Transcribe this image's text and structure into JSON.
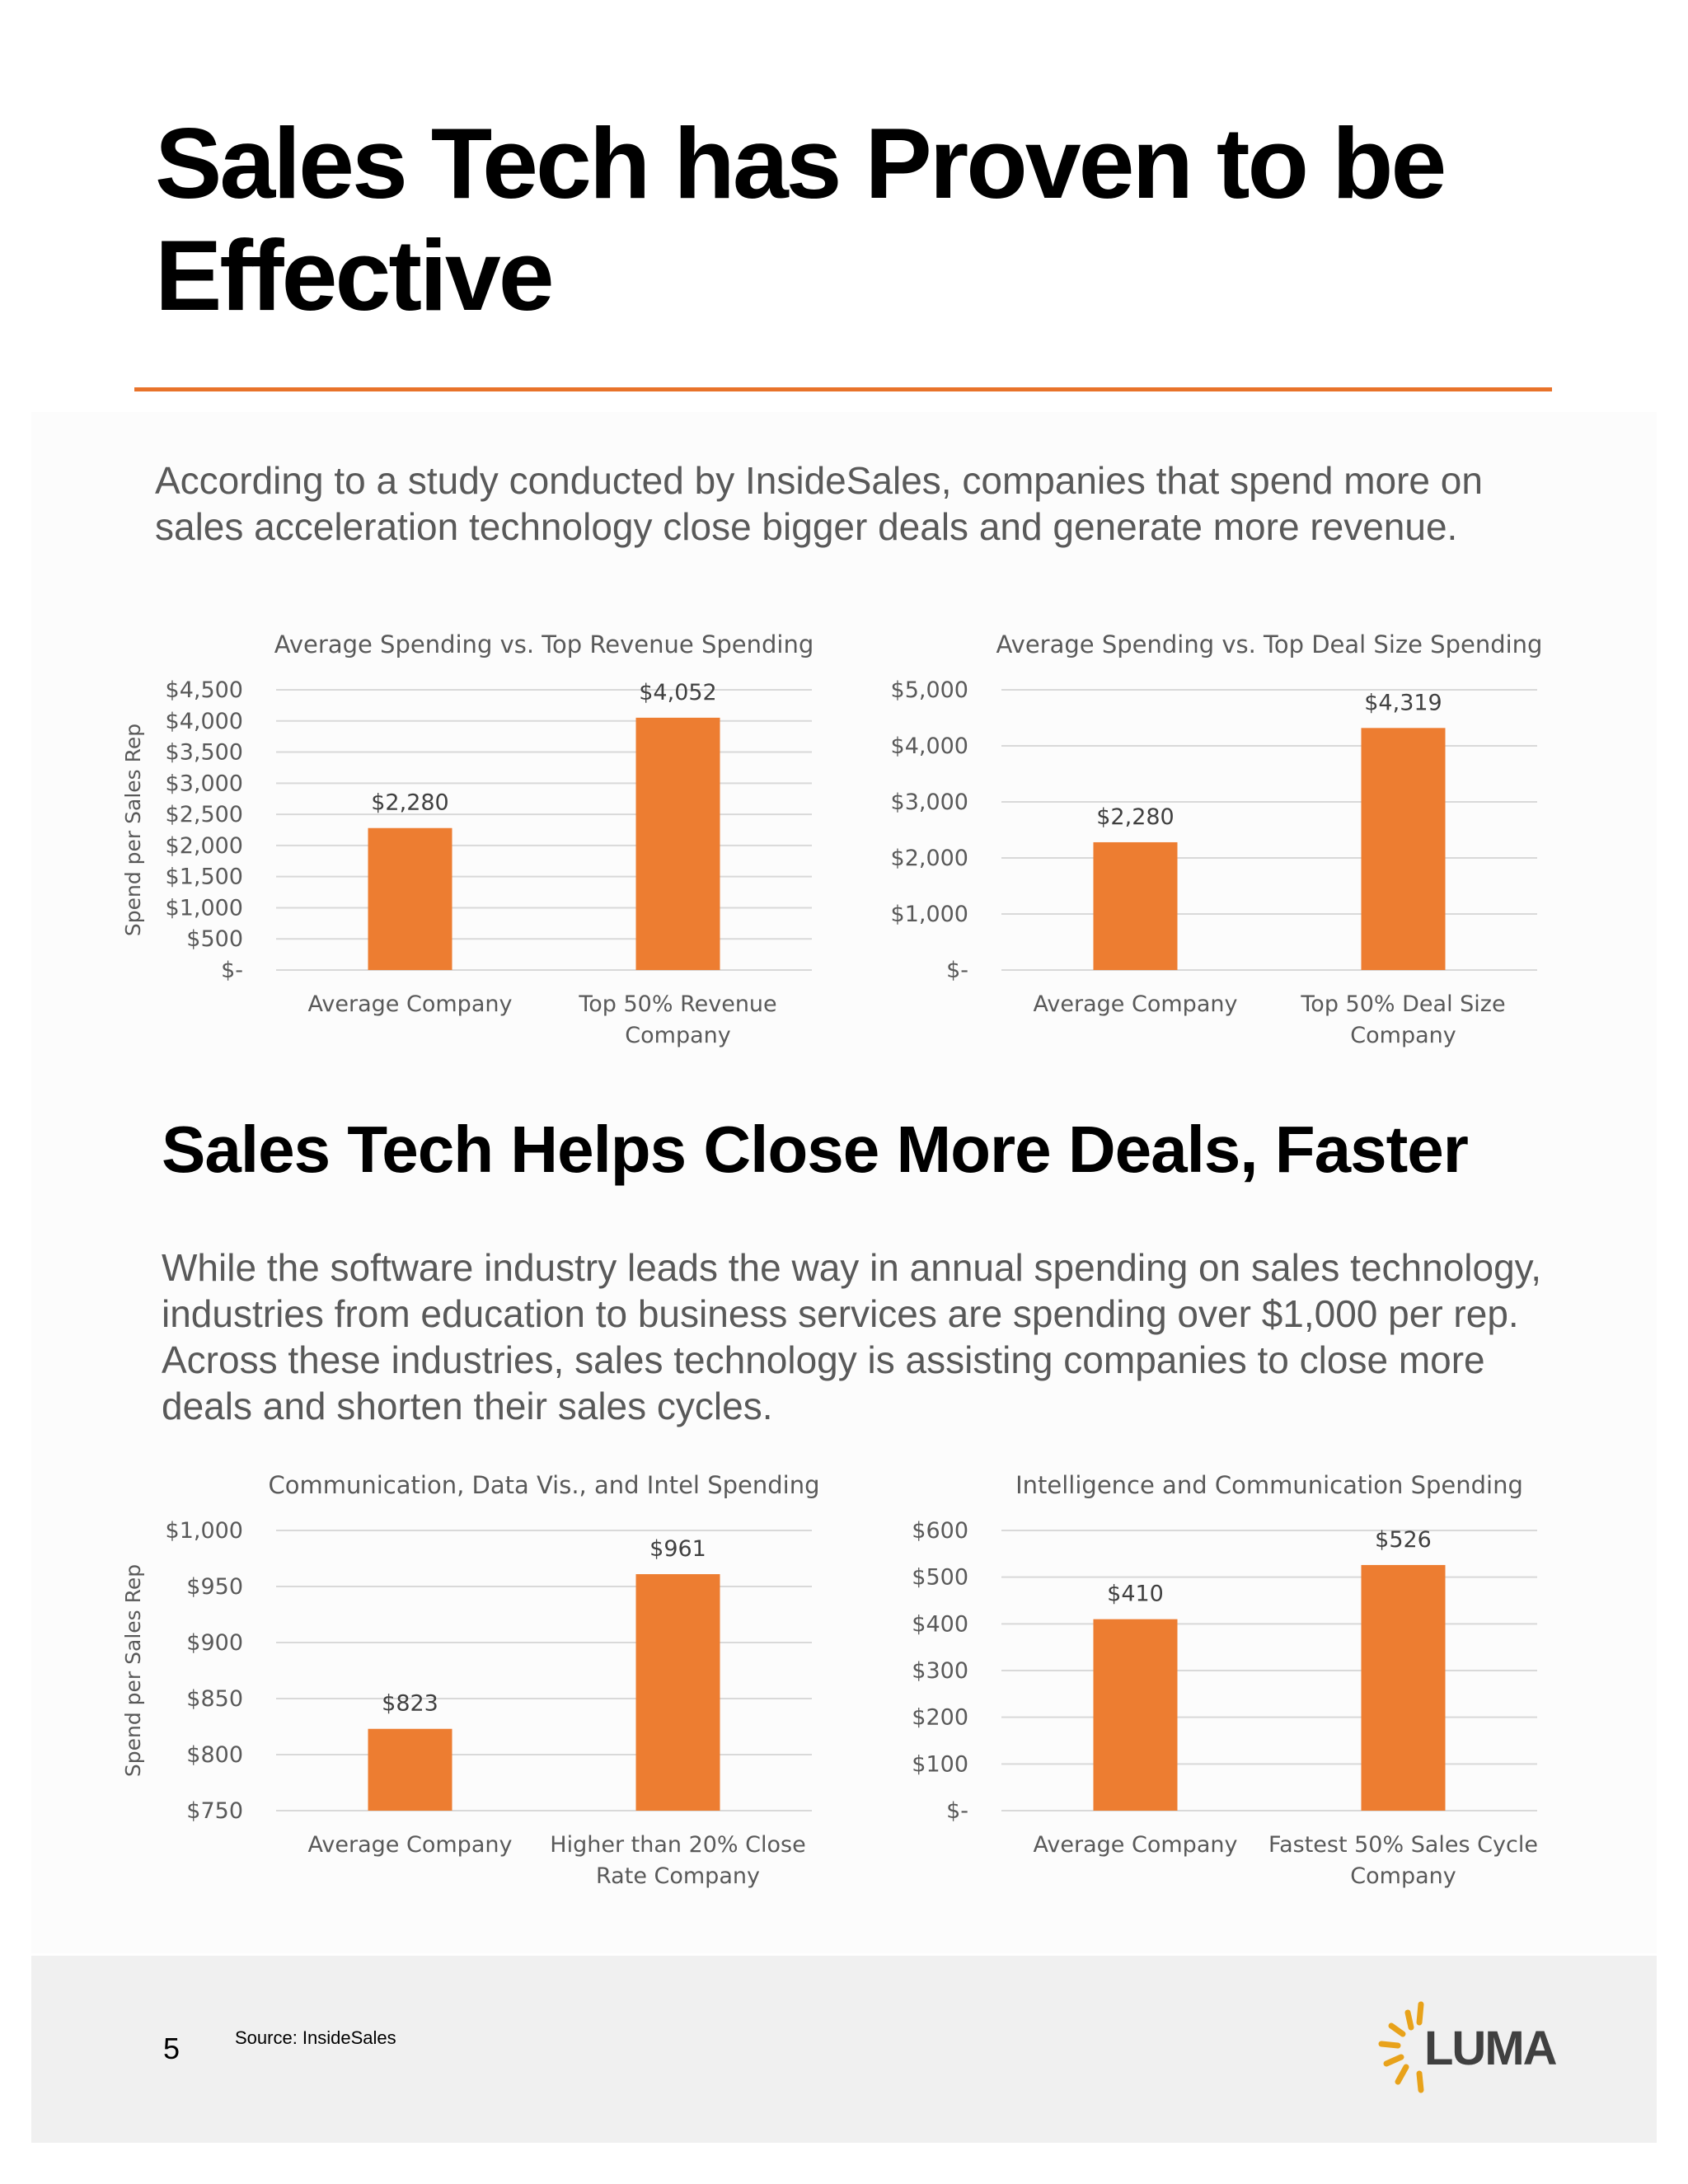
{
  "title": "Sales Tech has Proven to be Effective",
  "intro": "According to a study conducted by InsideSales, companies that spend more on sales acceleration technology close bigger deals and generate more revenue.",
  "subtitle": "Sales Tech Helps Close More Deals, Faster",
  "paragraph": "While the software industry leads the way in annual spending on sales technology, industries from education to business services are spending over $1,000 per rep. Across these industries, sales technology is assisting companies to close more deals and shorten their sales cycles.",
  "footer": {
    "page_number": "5",
    "source": "Source: InsideSales",
    "logo": "LUMA"
  },
  "colors": {
    "accent": "#e8732a",
    "bar": "#ed7d31",
    "grid": "#d9d9d9",
    "text": "#595959",
    "footer_bg": "#f0f0f0"
  },
  "chart_data": [
    {
      "type": "bar",
      "title": "Average Spending vs. Top Revenue Spending",
      "ylabel": "Spend per Sales Rep",
      "categories": [
        [
          "Average Company"
        ],
        [
          "Top 50% Revenue",
          "Company"
        ]
      ],
      "values": [
        2280,
        4052
      ],
      "value_labels": [
        "$2,280",
        "$4,052"
      ],
      "ylim": [
        0,
        4500
      ],
      "ticks": [
        0,
        500,
        1000,
        1500,
        2000,
        2500,
        3000,
        3500,
        4000,
        4500
      ],
      "tick_labels": [
        "$-",
        "$500",
        "$1,000",
        "$1,500",
        "$2,000",
        "$2,500",
        "$3,000",
        "$3,500",
        "$4,000",
        "$4,500"
      ],
      "grid": true
    },
    {
      "type": "bar",
      "title": "Average Spending vs. Top Deal Size Spending",
      "ylabel": "",
      "categories": [
        [
          "Average Company"
        ],
        [
          "Top 50% Deal Size",
          "Company"
        ]
      ],
      "values": [
        2280,
        4319
      ],
      "value_labels": [
        "$2,280",
        "$4,319"
      ],
      "ylim": [
        0,
        5000
      ],
      "ticks": [
        0,
        1000,
        2000,
        3000,
        4000,
        5000
      ],
      "tick_labels": [
        "$-",
        "$1,000",
        "$2,000",
        "$3,000",
        "$4,000",
        "$5,000"
      ],
      "grid": true
    },
    {
      "type": "bar",
      "title": "Communication,  Data Vis., and Intel Spending",
      "ylabel": "Spend per Sales Rep",
      "categories": [
        [
          "Average Company"
        ],
        [
          "Higher than 20% Close",
          "Rate Company"
        ]
      ],
      "values": [
        823,
        961
      ],
      "value_labels": [
        "$823",
        "$961"
      ],
      "ylim": [
        750,
        1000
      ],
      "ticks": [
        750,
        800,
        850,
        900,
        950,
        1000
      ],
      "tick_labels": [
        "$750",
        "$800",
        "$850",
        "$900",
        "$950",
        "$1,000"
      ],
      "grid": true
    },
    {
      "type": "bar",
      "title": "Intelligence and Communication Spending",
      "ylabel": "",
      "categories": [
        [
          "Average Company"
        ],
        [
          "Fastest 50% Sales Cycle",
          "Company"
        ]
      ],
      "values": [
        410,
        526
      ],
      "value_labels": [
        "$410",
        "$526"
      ],
      "ylim": [
        0,
        600
      ],
      "ticks": [
        0,
        100,
        200,
        300,
        400,
        500,
        600
      ],
      "tick_labels": [
        "$-",
        "$100",
        "$200",
        "$300",
        "$400",
        "$500",
        "$600"
      ],
      "grid": true
    }
  ]
}
